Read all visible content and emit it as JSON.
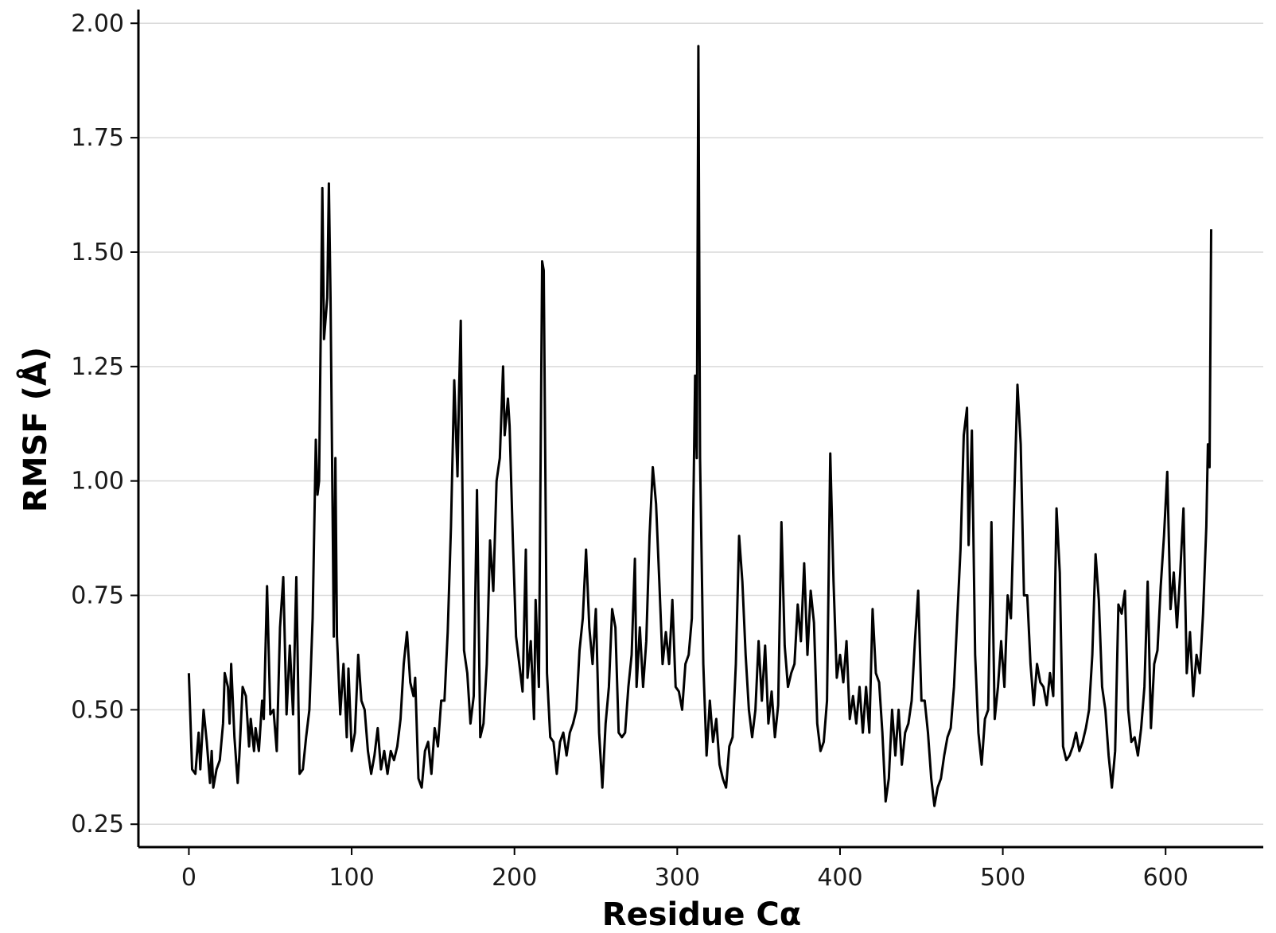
{
  "chart_data": {
    "type": "line",
    "title": "",
    "xlabel": "Residue Cα",
    "ylabel": "RMSF (Å)",
    "xlim": [
      -31,
      660
    ],
    "ylim": [
      0.2,
      2.03
    ],
    "x_ticks": [
      0,
      100,
      200,
      300,
      400,
      500,
      600
    ],
    "y_ticks": [
      0.25,
      0.5,
      0.75,
      1.0,
      1.25,
      1.5,
      1.75,
      2.0
    ],
    "x_tick_labels": [
      "0",
      "100",
      "200",
      "300",
      "400",
      "500",
      "600"
    ],
    "y_tick_labels": [
      "0.25",
      "0.50",
      "0.75",
      "1.00",
      "1.25",
      "1.50",
      "1.75",
      "2.00"
    ],
    "grid": "horizontal",
    "line_color": "#000000",
    "grid_color": "#d9d9d9",
    "points": [
      [
        0,
        0.58
      ],
      [
        2,
        0.37
      ],
      [
        4,
        0.36
      ],
      [
        6,
        0.45
      ],
      [
        7,
        0.37
      ],
      [
        9,
        0.5
      ],
      [
        11,
        0.43
      ],
      [
        13,
        0.34
      ],
      [
        14,
        0.41
      ],
      [
        15,
        0.33
      ],
      [
        17,
        0.37
      ],
      [
        19,
        0.39
      ],
      [
        21,
        0.47
      ],
      [
        22,
        0.58
      ],
      [
        24,
        0.55
      ],
      [
        25,
        0.47
      ],
      [
        26,
        0.6
      ],
      [
        28,
        0.44
      ],
      [
        30,
        0.34
      ],
      [
        31,
        0.4
      ],
      [
        33,
        0.55
      ],
      [
        35,
        0.53
      ],
      [
        37,
        0.42
      ],
      [
        38,
        0.48
      ],
      [
        40,
        0.41
      ],
      [
        41,
        0.46
      ],
      [
        43,
        0.41
      ],
      [
        45,
        0.52
      ],
      [
        46,
        0.48
      ],
      [
        48,
        0.77
      ],
      [
        50,
        0.49
      ],
      [
        52,
        0.5
      ],
      [
        54,
        0.41
      ],
      [
        56,
        0.68
      ],
      [
        58,
        0.79
      ],
      [
        60,
        0.49
      ],
      [
        62,
        0.64
      ],
      [
        64,
        0.49
      ],
      [
        66,
        0.79
      ],
      [
        68,
        0.36
      ],
      [
        70,
        0.37
      ],
      [
        72,
        0.44
      ],
      [
        74,
        0.5
      ],
      [
        76,
        0.7
      ],
      [
        78,
        1.09
      ],
      [
        79,
        0.97
      ],
      [
        80,
        1.0
      ],
      [
        82,
        1.64
      ],
      [
        83,
        1.31
      ],
      [
        85,
        1.4
      ],
      [
        86,
        1.65
      ],
      [
        87,
        1.4
      ],
      [
        89,
        0.66
      ],
      [
        90,
        1.05
      ],
      [
        91,
        0.66
      ],
      [
        93,
        0.49
      ],
      [
        95,
        0.6
      ],
      [
        97,
        0.44
      ],
      [
        98,
        0.59
      ],
      [
        100,
        0.41
      ],
      [
        102,
        0.45
      ],
      [
        104,
        0.62
      ],
      [
        106,
        0.52
      ],
      [
        108,
        0.5
      ],
      [
        110,
        0.41
      ],
      [
        112,
        0.36
      ],
      [
        114,
        0.4
      ],
      [
        116,
        0.46
      ],
      [
        118,
        0.37
      ],
      [
        120,
        0.41
      ],
      [
        122,
        0.36
      ],
      [
        124,
        0.41
      ],
      [
        126,
        0.39
      ],
      [
        128,
        0.42
      ],
      [
        130,
        0.48
      ],
      [
        132,
        0.6
      ],
      [
        134,
        0.67
      ],
      [
        136,
        0.56
      ],
      [
        138,
        0.53
      ],
      [
        139,
        0.57
      ],
      [
        141,
        0.35
      ],
      [
        143,
        0.33
      ],
      [
        145,
        0.41
      ],
      [
        147,
        0.43
      ],
      [
        149,
        0.36
      ],
      [
        151,
        0.46
      ],
      [
        153,
        0.42
      ],
      [
        155,
        0.52
      ],
      [
        157,
        0.52
      ],
      [
        159,
        0.67
      ],
      [
        161,
        0.9
      ],
      [
        163,
        1.22
      ],
      [
        165,
        1.01
      ],
      [
        166,
        1.2
      ],
      [
        167,
        1.35
      ],
      [
        169,
        0.63
      ],
      [
        171,
        0.58
      ],
      [
        173,
        0.47
      ],
      [
        175,
        0.53
      ],
      [
        177,
        0.98
      ],
      [
        179,
        0.44
      ],
      [
        181,
        0.47
      ],
      [
        183,
        0.6
      ],
      [
        185,
        0.87
      ],
      [
        187,
        0.76
      ],
      [
        189,
        1.0
      ],
      [
        191,
        1.05
      ],
      [
        193,
        1.25
      ],
      [
        194,
        1.1
      ],
      [
        196,
        1.18
      ],
      [
        197,
        1.12
      ],
      [
        199,
        0.87
      ],
      [
        201,
        0.66
      ],
      [
        203,
        0.6
      ],
      [
        205,
        0.54
      ],
      [
        207,
        0.85
      ],
      [
        208,
        0.57
      ],
      [
        210,
        0.65
      ],
      [
        212,
        0.48
      ],
      [
        213,
        0.74
      ],
      [
        215,
        0.55
      ],
      [
        217,
        1.48
      ],
      [
        218,
        1.46
      ],
      [
        220,
        0.58
      ],
      [
        222,
        0.44
      ],
      [
        224,
        0.43
      ],
      [
        226,
        0.36
      ],
      [
        228,
        0.43
      ],
      [
        230,
        0.45
      ],
      [
        232,
        0.4
      ],
      [
        234,
        0.45
      ],
      [
        236,
        0.47
      ],
      [
        238,
        0.5
      ],
      [
        240,
        0.63
      ],
      [
        242,
        0.7
      ],
      [
        244,
        0.85
      ],
      [
        246,
        0.68
      ],
      [
        248,
        0.6
      ],
      [
        250,
        0.72
      ],
      [
        252,
        0.45
      ],
      [
        254,
        0.33
      ],
      [
        256,
        0.47
      ],
      [
        258,
        0.55
      ],
      [
        260,
        0.72
      ],
      [
        262,
        0.68
      ],
      [
        264,
        0.45
      ],
      [
        266,
        0.44
      ],
      [
        268,
        0.45
      ],
      [
        270,
        0.55
      ],
      [
        272,
        0.62
      ],
      [
        274,
        0.83
      ],
      [
        275,
        0.55
      ],
      [
        277,
        0.68
      ],
      [
        279,
        0.55
      ],
      [
        281,
        0.65
      ],
      [
        283,
        0.88
      ],
      [
        285,
        1.03
      ],
      [
        287,
        0.95
      ],
      [
        289,
        0.78
      ],
      [
        291,
        0.6
      ],
      [
        293,
        0.67
      ],
      [
        295,
        0.6
      ],
      [
        297,
        0.74
      ],
      [
        299,
        0.55
      ],
      [
        301,
        0.54
      ],
      [
        303,
        0.5
      ],
      [
        305,
        0.6
      ],
      [
        307,
        0.62
      ],
      [
        309,
        0.7
      ],
      [
        311,
        1.23
      ],
      [
        312,
        1.05
      ],
      [
        313,
        1.95
      ],
      [
        314,
        1.05
      ],
      [
        316,
        0.6
      ],
      [
        318,
        0.4
      ],
      [
        320,
        0.52
      ],
      [
        322,
        0.43
      ],
      [
        324,
        0.48
      ],
      [
        326,
        0.38
      ],
      [
        328,
        0.35
      ],
      [
        330,
        0.33
      ],
      [
        332,
        0.42
      ],
      [
        334,
        0.44
      ],
      [
        336,
        0.6
      ],
      [
        338,
        0.88
      ],
      [
        340,
        0.78
      ],
      [
        342,
        0.62
      ],
      [
        344,
        0.5
      ],
      [
        346,
        0.44
      ],
      [
        348,
        0.5
      ],
      [
        350,
        0.65
      ],
      [
        352,
        0.52
      ],
      [
        354,
        0.64
      ],
      [
        356,
        0.47
      ],
      [
        358,
        0.54
      ],
      [
        360,
        0.44
      ],
      [
        362,
        0.51
      ],
      [
        364,
        0.91
      ],
      [
        366,
        0.64
      ],
      [
        368,
        0.55
      ],
      [
        370,
        0.58
      ],
      [
        372,
        0.6
      ],
      [
        374,
        0.73
      ],
      [
        376,
        0.65
      ],
      [
        378,
        0.82
      ],
      [
        380,
        0.62
      ],
      [
        382,
        0.76
      ],
      [
        384,
        0.69
      ],
      [
        386,
        0.47
      ],
      [
        388,
        0.41
      ],
      [
        390,
        0.43
      ],
      [
        392,
        0.52
      ],
      [
        394,
        1.06
      ],
      [
        396,
        0.78
      ],
      [
        398,
        0.57
      ],
      [
        400,
        0.62
      ],
      [
        402,
        0.56
      ],
      [
        404,
        0.65
      ],
      [
        406,
        0.48
      ],
      [
        408,
        0.53
      ],
      [
        410,
        0.47
      ],
      [
        412,
        0.55
      ],
      [
        414,
        0.45
      ],
      [
        416,
        0.55
      ],
      [
        418,
        0.45
      ],
      [
        420,
        0.72
      ],
      [
        422,
        0.58
      ],
      [
        424,
        0.56
      ],
      [
        426,
        0.45
      ],
      [
        428,
        0.3
      ],
      [
        430,
        0.35
      ],
      [
        432,
        0.5
      ],
      [
        434,
        0.4
      ],
      [
        436,
        0.5
      ],
      [
        438,
        0.38
      ],
      [
        440,
        0.45
      ],
      [
        442,
        0.47
      ],
      [
        444,
        0.52
      ],
      [
        446,
        0.65
      ],
      [
        448,
        0.76
      ],
      [
        450,
        0.52
      ],
      [
        452,
        0.52
      ],
      [
        454,
        0.45
      ],
      [
        456,
        0.35
      ],
      [
        458,
        0.29
      ],
      [
        460,
        0.33
      ],
      [
        462,
        0.35
      ],
      [
        464,
        0.4
      ],
      [
        466,
        0.44
      ],
      [
        468,
        0.46
      ],
      [
        470,
        0.55
      ],
      [
        472,
        0.7
      ],
      [
        474,
        0.85
      ],
      [
        476,
        1.1
      ],
      [
        478,
        1.16
      ],
      [
        479,
        0.86
      ],
      [
        481,
        1.11
      ],
      [
        483,
        0.62
      ],
      [
        485,
        0.45
      ],
      [
        487,
        0.38
      ],
      [
        489,
        0.48
      ],
      [
        491,
        0.5
      ],
      [
        493,
        0.91
      ],
      [
        495,
        0.48
      ],
      [
        497,
        0.55
      ],
      [
        499,
        0.65
      ],
      [
        501,
        0.55
      ],
      [
        503,
        0.75
      ],
      [
        505,
        0.7
      ],
      [
        507,
        0.96
      ],
      [
        509,
        1.21
      ],
      [
        511,
        1.08
      ],
      [
        513,
        0.75
      ],
      [
        515,
        0.75
      ],
      [
        517,
        0.6
      ],
      [
        519,
        0.51
      ],
      [
        521,
        0.6
      ],
      [
        523,
        0.56
      ],
      [
        525,
        0.55
      ],
      [
        527,
        0.51
      ],
      [
        529,
        0.58
      ],
      [
        531,
        0.53
      ],
      [
        533,
        0.94
      ],
      [
        535,
        0.8
      ],
      [
        537,
        0.42
      ],
      [
        539,
        0.39
      ],
      [
        541,
        0.4
      ],
      [
        543,
        0.42
      ],
      [
        545,
        0.45
      ],
      [
        547,
        0.41
      ],
      [
        549,
        0.43
      ],
      [
        551,
        0.46
      ],
      [
        553,
        0.5
      ],
      [
        555,
        0.62
      ],
      [
        557,
        0.84
      ],
      [
        559,
        0.74
      ],
      [
        561,
        0.55
      ],
      [
        563,
        0.5
      ],
      [
        565,
        0.4
      ],
      [
        567,
        0.33
      ],
      [
        569,
        0.41
      ],
      [
        571,
        0.73
      ],
      [
        573,
        0.71
      ],
      [
        575,
        0.76
      ],
      [
        577,
        0.5
      ],
      [
        579,
        0.43
      ],
      [
        581,
        0.44
      ],
      [
        583,
        0.4
      ],
      [
        585,
        0.46
      ],
      [
        587,
        0.55
      ],
      [
        589,
        0.78
      ],
      [
        591,
        0.46
      ],
      [
        593,
        0.6
      ],
      [
        595,
        0.63
      ],
      [
        597,
        0.77
      ],
      [
        599,
        0.88
      ],
      [
        601,
        1.02
      ],
      [
        603,
        0.72
      ],
      [
        605,
        0.8
      ],
      [
        607,
        0.68
      ],
      [
        609,
        0.8
      ],
      [
        611,
        0.94
      ],
      [
        613,
        0.58
      ],
      [
        615,
        0.67
      ],
      [
        617,
        0.53
      ],
      [
        619,
        0.62
      ],
      [
        621,
        0.58
      ],
      [
        623,
        0.71
      ],
      [
        625,
        0.9
      ],
      [
        626,
        1.08
      ],
      [
        627,
        1.03
      ],
      [
        628,
        1.55
      ]
    ]
  }
}
